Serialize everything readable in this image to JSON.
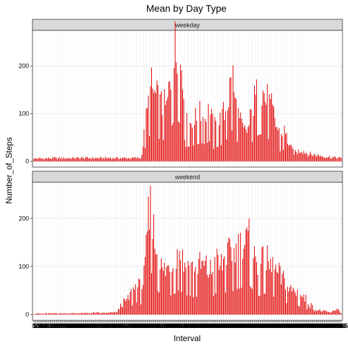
{
  "chart_data": {
    "type": "bar",
    "title": "Mean by Day Type",
    "xlabel": "Interval",
    "ylabel": "Number_of_Steps",
    "ylim": [
      -12,
      275
    ],
    "yticks": [
      0,
      100,
      200
    ],
    "grid": true,
    "bar_color": "#e00000",
    "n_intervals": 288,
    "interval_step_minutes": 5,
    "facets": [
      {
        "label": "weekday",
        "profile": [
          [
            0,
            7
          ],
          [
            30,
            8
          ],
          [
            60,
            8
          ],
          [
            100,
            8
          ],
          [
            102,
            40
          ],
          [
            104,
            80
          ],
          [
            106,
            115
          ],
          [
            108,
            150
          ],
          [
            110,
            170
          ],
          [
            114,
            150
          ],
          [
            118,
            130
          ],
          [
            124,
            125
          ],
          [
            126,
            160
          ],
          [
            128,
            200
          ],
          [
            130,
            230
          ],
          [
            132,
            260
          ],
          [
            134,
            250
          ],
          [
            138,
            215
          ],
          [
            140,
            170
          ],
          [
            142,
            85
          ],
          [
            146,
            90
          ],
          [
            150,
            95
          ],
          [
            156,
            110
          ],
          [
            160,
            100
          ],
          [
            164,
            120
          ],
          [
            168,
            75
          ],
          [
            172,
            90
          ],
          [
            176,
            100
          ],
          [
            180,
            130
          ],
          [
            182,
            160
          ],
          [
            184,
            180
          ],
          [
            186,
            190
          ],
          [
            188,
            140
          ],
          [
            192,
            95
          ],
          [
            196,
            70
          ],
          [
            200,
            75
          ],
          [
            206,
            140
          ],
          [
            210,
            160
          ],
          [
            214,
            165
          ],
          [
            218,
            140
          ],
          [
            222,
            120
          ],
          [
            226,
            90
          ],
          [
            230,
            60
          ],
          [
            234,
            70
          ],
          [
            238,
            45
          ],
          [
            240,
            30
          ],
          [
            244,
            20
          ],
          [
            250,
            28
          ],
          [
            256,
            18
          ],
          [
            266,
            14
          ],
          [
            276,
            10
          ],
          [
            287,
            8
          ]
        ]
      },
      {
        "label": "weekend",
        "profile": [
          [
            0,
            2
          ],
          [
            20,
            3
          ],
          [
            40,
            3
          ],
          [
            56,
            4
          ],
          [
            70,
            4
          ],
          [
            78,
            6
          ],
          [
            82,
            25
          ],
          [
            88,
            35
          ],
          [
            92,
            55
          ],
          [
            96,
            70
          ],
          [
            100,
            60
          ],
          [
            104,
            100
          ],
          [
            106,
            190
          ],
          [
            108,
            230
          ],
          [
            110,
            245
          ],
          [
            112,
            190
          ],
          [
            116,
            140
          ],
          [
            120,
            100
          ],
          [
            126,
            110
          ],
          [
            132,
            125
          ],
          [
            136,
            150
          ],
          [
            140,
            120
          ],
          [
            146,
            110
          ],
          [
            150,
            100
          ],
          [
            156,
            115
          ],
          [
            160,
            110
          ],
          [
            166,
            100
          ],
          [
            170,
            125
          ],
          [
            174,
            110
          ],
          [
            178,
            130
          ],
          [
            182,
            135
          ],
          [
            186,
            140
          ],
          [
            190,
            150
          ],
          [
            194,
            160
          ],
          [
            198,
            165
          ],
          [
            202,
            170
          ],
          [
            206,
            130
          ],
          [
            210,
            110
          ],
          [
            216,
            125
          ],
          [
            222,
            110
          ],
          [
            228,
            95
          ],
          [
            234,
            75
          ],
          [
            238,
            60
          ],
          [
            244,
            55
          ],
          [
            250,
            45
          ],
          [
            256,
            30
          ],
          [
            262,
            12
          ],
          [
            270,
            8
          ],
          [
            278,
            5
          ],
          [
            283,
            15
          ],
          [
            287,
            4
          ]
        ]
      }
    ]
  }
}
